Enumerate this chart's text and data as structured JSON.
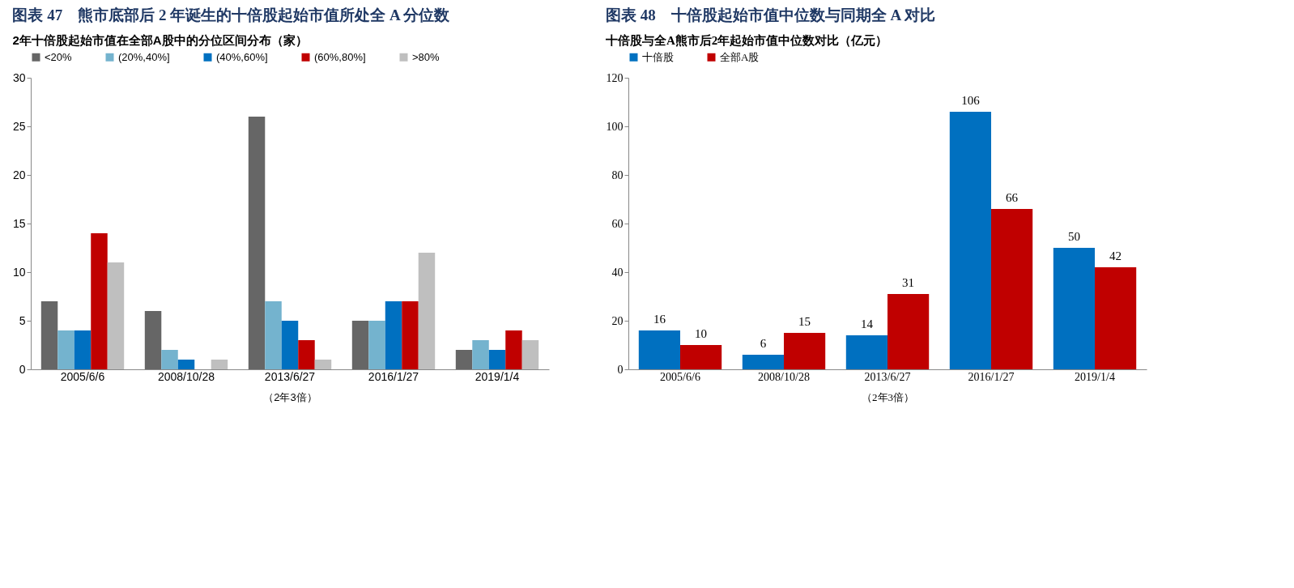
{
  "chart_data": [
    {
      "type": "bar",
      "title": "图表 47　熊市底部后 2 年诞生的十倍股起始市值所处全 A 分位数",
      "subtitle": "2年十倍股起始市值在全部A股中的分位区间分布（家）",
      "xlabel": "（2年3倍）",
      "categories": [
        "2005/6/6",
        "2008/10/28",
        "2013/6/27",
        "2016/1/27",
        "2019/1/4"
      ],
      "series": [
        {
          "name": "<20%",
          "color": "#666666",
          "values": [
            7,
            6,
            26,
            5,
            2
          ]
        },
        {
          "name": "(20%,40%]",
          "color": "#74b3ce",
          "values": [
            4,
            2,
            7,
            5,
            3
          ]
        },
        {
          "name": "(40%,60%]",
          "color": "#0070c0",
          "values": [
            4,
            1,
            5,
            7,
            2
          ]
        },
        {
          "name": "(60%,80%]",
          "color": "#c00000",
          "values": [
            14,
            0,
            3,
            7,
            4
          ]
        },
        {
          "name": ">80%",
          "color": "#bfbfbf",
          "values": [
            11,
            1,
            1,
            12,
            3
          ]
        }
      ],
      "ylim": [
        0,
        30
      ],
      "yticks": [
        0,
        5,
        10,
        15,
        20,
        25,
        30
      ],
      "grid": false,
      "legend": "top"
    },
    {
      "type": "bar",
      "title": "图表 48　十倍股起始市值中位数与同期全 A 对比",
      "subtitle": "十倍股与全A熊市后2年起始市值中位数对比（亿元）",
      "xlabel": "（2年3倍）",
      "categories": [
        "2005/6/6",
        "2008/10/28",
        "2013/6/27",
        "2016/1/27",
        "2019/1/4"
      ],
      "series": [
        {
          "name": "十倍股",
          "color": "#0070c0",
          "values": [
            16,
            6,
            14,
            106,
            50
          ]
        },
        {
          "name": "全部A股",
          "color": "#c00000",
          "values": [
            10,
            15,
            31,
            66,
            42
          ]
        }
      ],
      "ylim": [
        0,
        120
      ],
      "yticks": [
        0,
        20,
        40,
        60,
        80,
        100,
        120
      ],
      "grid": false,
      "legend": "top",
      "data_labels": true
    }
  ]
}
